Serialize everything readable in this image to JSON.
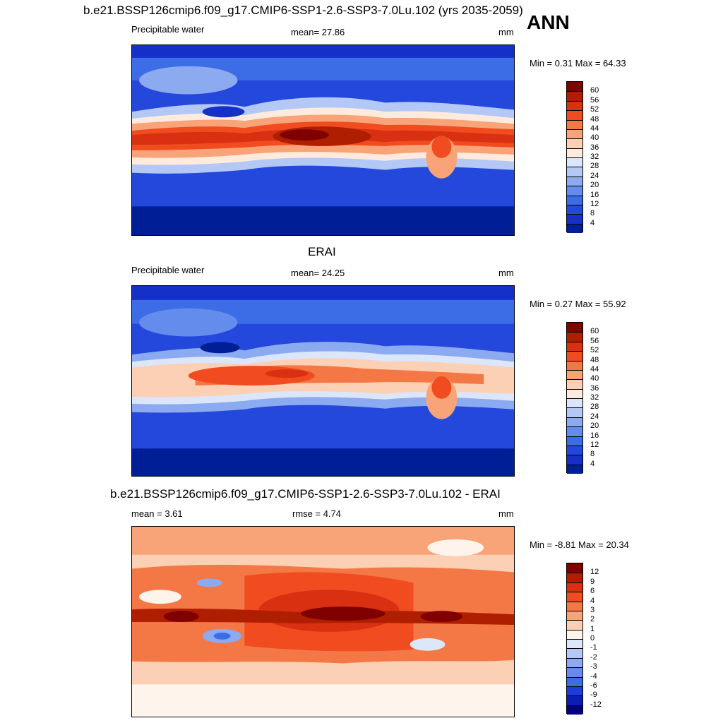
{
  "header": {
    "title": "b.e21.BSSP126cmip6.f09_g17.CMIP6-SSP1-2.6-SSP3-7.0Lu.102 (yrs 2035-2059)",
    "season": "ANN"
  },
  "panels": [
    {
      "id": "model",
      "title": "",
      "left_label": "Precipitable water",
      "center_label": "mean=  27.86",
      "units": "mm",
      "minmax": "Min =   0.31 Max =  64.33",
      "colorbar": {
        "labels": [
          "60",
          "56",
          "52",
          "48",
          "44",
          "40",
          "36",
          "32",
          "28",
          "24",
          "20",
          "16",
          "12",
          "8",
          "4"
        ],
        "colors": [
          "#800000",
          "#B01E00",
          "#D83010",
          "#F04C20",
          "#F47846",
          "#F8A478",
          "#FCD0B4",
          "#FEEBDE",
          "#DCE6FA",
          "#B4C8F6",
          "#8CAAF0",
          "#648CEC",
          "#3C6CE6",
          "#2448DC",
          "#1430C8",
          "#001E96"
        ]
      }
    },
    {
      "id": "obs",
      "title": "ERAI",
      "left_label": "Precipitable water",
      "center_label": "mean=  24.25",
      "units": "mm",
      "minmax": "Min =   0.27 Max =  55.92",
      "colorbar": {
        "labels": [
          "60",
          "56",
          "52",
          "48",
          "44",
          "40",
          "36",
          "32",
          "28",
          "24",
          "20",
          "16",
          "12",
          "8",
          "4"
        ],
        "colors": [
          "#800000",
          "#B01E00",
          "#D83010",
          "#F04C20",
          "#F47846",
          "#F8A478",
          "#FCD0B4",
          "#FEEBDE",
          "#DCE6FA",
          "#B4C8F6",
          "#8CAAF0",
          "#648CEC",
          "#3C6CE6",
          "#2448DC",
          "#1430C8",
          "#001E96"
        ]
      }
    },
    {
      "id": "diff",
      "title": "b.e21.BSSP126cmip6.f09_g17.CMIP6-SSP1-2.6-SSP3-7.0Lu.102 - ERAI",
      "left_label": "mean =   3.61",
      "center_label": "rmse =   4.74",
      "units": "mm",
      "minmax": "Min =  -8.81 Max =  20.34",
      "colorbar": {
        "labels": [
          "12",
          "9",
          "6",
          "4",
          "3",
          "2",
          "1",
          "0",
          "-1",
          "-2",
          "-3",
          "-4",
          "-6",
          "-9",
          "-12"
        ],
        "colors": [
          "#800000",
          "#B01E00",
          "#D83010",
          "#F04C20",
          "#F47846",
          "#F8A478",
          "#FCD0B4",
          "#FEF4EC",
          "#DCE8FA",
          "#B4C8F6",
          "#8CAAF0",
          "#648CEC",
          "#3C6CE6",
          "#1E3CDC",
          "#0A1EB4",
          "#000082"
        ]
      }
    }
  ]
}
